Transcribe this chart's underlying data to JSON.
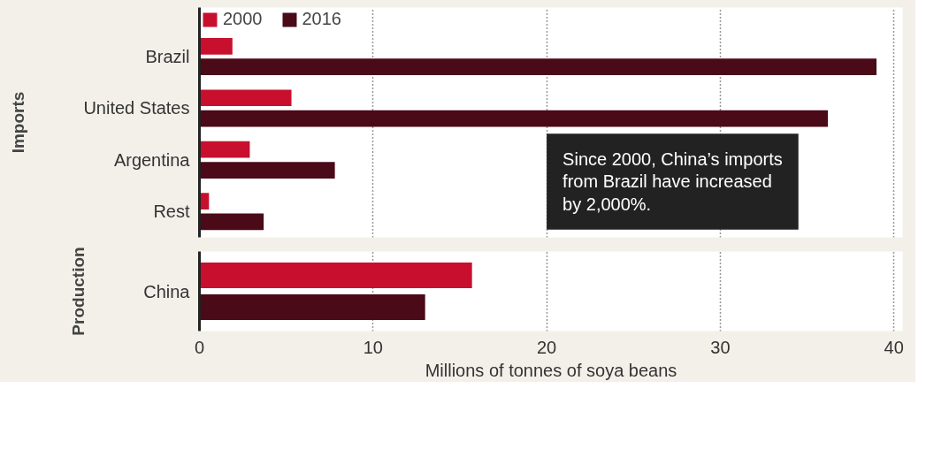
{
  "chart_data": [
    {
      "type": "bar",
      "orientation": "horizontal",
      "ylabel": "Imports",
      "categories": [
        "Brazil",
        "United States",
        "Argentina",
        "Rest"
      ],
      "series": [
        {
          "name": "2000",
          "color": "#c8102e",
          "values": [
            1.9,
            5.3,
            2.9,
            0.55
          ]
        },
        {
          "name": "2016",
          "color": "#4a0a18",
          "values": [
            39.0,
            36.2,
            7.8,
            3.7
          ]
        }
      ],
      "xlim": [
        0,
        40.5
      ],
      "xticks": [
        0,
        10,
        20,
        30,
        40
      ],
      "grid": "x",
      "legend": "top",
      "tick_labels": "y",
      "annotations": [
        "Since 2000, China’s imports\nfrom Brazil have increased\nby 2,000%."
      ]
    },
    {
      "type": "bar",
      "orientation": "horizontal",
      "ylabel": "Production",
      "xlabel": "Millions of tonnes of soya beans",
      "categories": [
        "China"
      ],
      "series": [
        {
          "color": "#c8102e",
          "values": [
            15.7
          ]
        },
        {
          "color": "#4a0a18",
          "values": [
            13.0
          ]
        }
      ],
      "xlim": [
        0,
        40.5
      ],
      "xticks": [
        0,
        10,
        20,
        30,
        40
      ],
      "grid": "x"
    }
  ]
}
